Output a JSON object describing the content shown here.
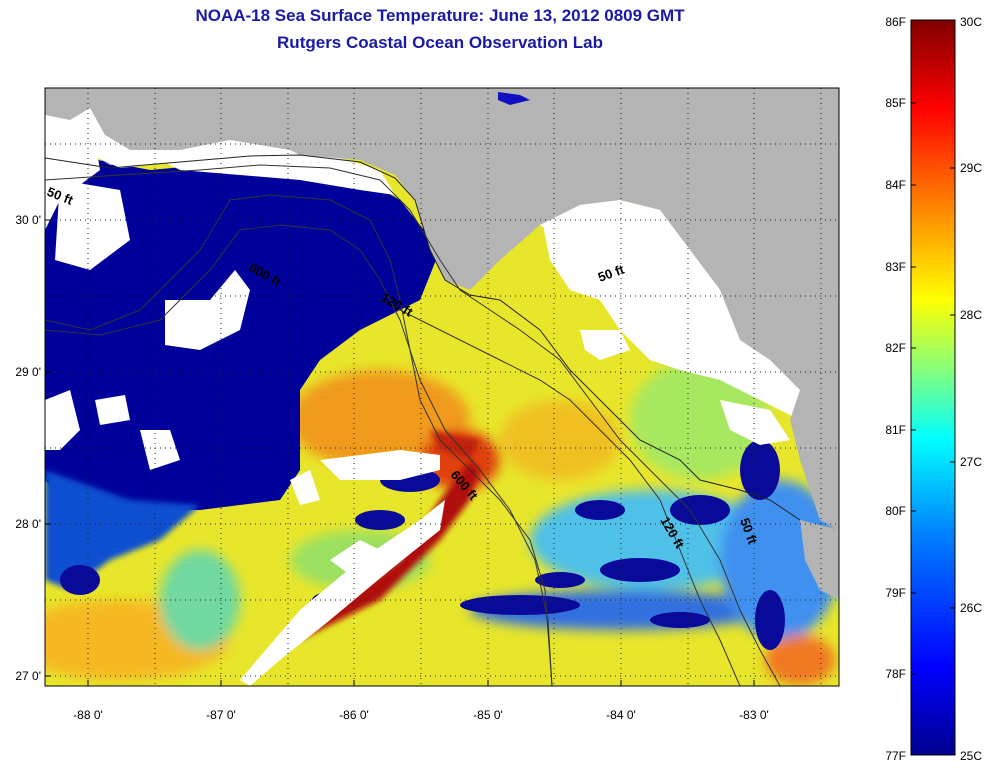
{
  "title": "NOAA-18 Sea Surface Temperature:  June 13, 2012 0809 GMT",
  "subtitle": "Rutgers Coastal Ocean Observation Lab",
  "map": {
    "x_ticks": [
      "-88 0'",
      "-87 0'",
      "-86 0'",
      "-85 0'",
      "-84 0'",
      "-83 0'"
    ],
    "y_ticks": [
      "30 0'",
      "29 0'",
      "28 0'",
      "27 0'"
    ],
    "land_color": "#b4b4b4",
    "cloud_color": "#ffffff",
    "contours": [
      {
        "label": "50 ft"
      },
      {
        "label": "600 ft"
      },
      {
        "label": "120 ft"
      },
      {
        "label": "50 ft"
      },
      {
        "label": "600 ft"
      },
      {
        "label": "120 ft"
      },
      {
        "label": "50 ft"
      }
    ]
  },
  "colorbar": {
    "fahrenheit_labels": [
      "86F",
      "85F",
      "84F",
      "83F",
      "82F",
      "81F",
      "80F",
      "79F",
      "78F",
      "77F"
    ],
    "celsius_labels": [
      "30C",
      "29C",
      "28C",
      "27C",
      "26C",
      "25C"
    ],
    "colors": [
      "#00008f",
      "#0000ff",
      "#0080ff",
      "#00ffff",
      "#80ff80",
      "#ffff00",
      "#ff8000",
      "#ff0000",
      "#800000"
    ]
  }
}
